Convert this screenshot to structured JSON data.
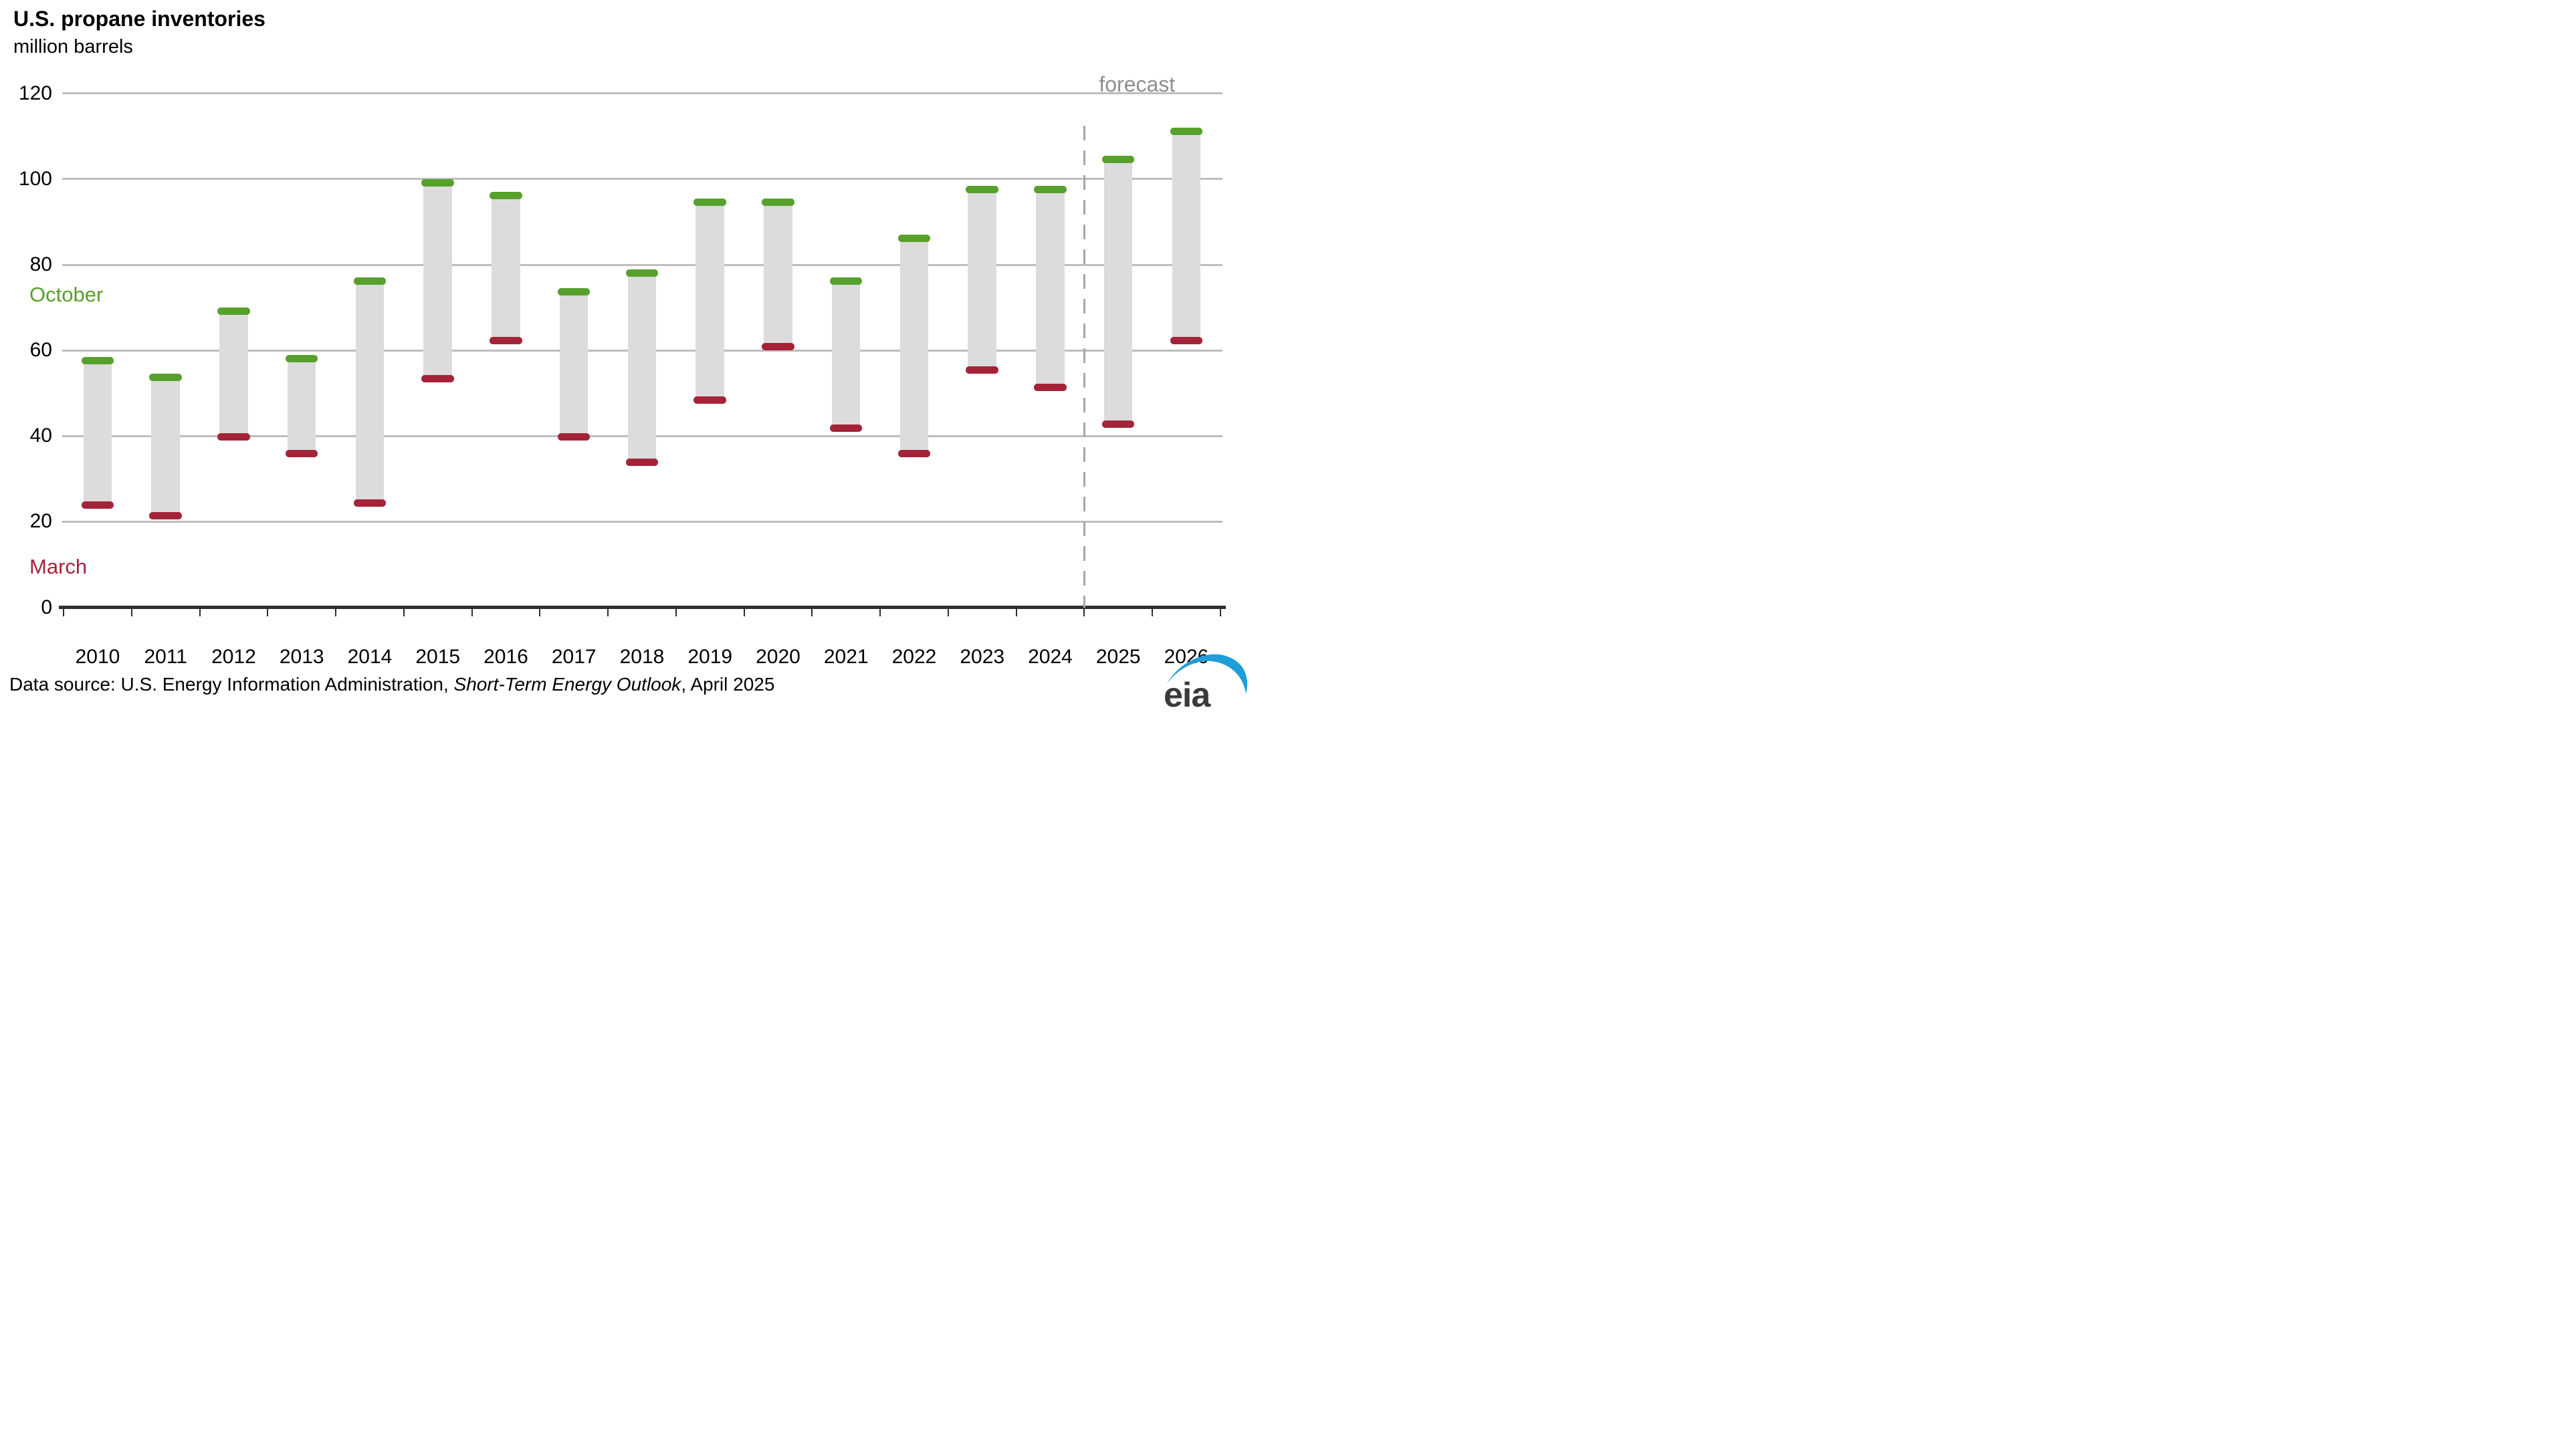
{
  "title": "U.S. propane inventories",
  "subtitle": "million barrels",
  "forecast_label": "forecast",
  "series_labels": {
    "october": "October",
    "march": "March"
  },
  "source": {
    "prefix": "Data source: U.S. Energy Information Administration, ",
    "italic": "Short-Term Energy Outlook",
    "suffix": ", April 2025"
  },
  "logo_text": "eia",
  "colors": {
    "october_green": "#57a02b",
    "march_crimson": "#a52338",
    "bar_gray": "#dcdcdc",
    "gridline": "#bdbdbd",
    "axis": "#2e2e2e",
    "forecast_gray": "#8f8f8f",
    "dashed_line": "#a6a6a6",
    "logo_blue": "#1e9dd8"
  },
  "chart_data": {
    "type": "bar",
    "variant": "floating-range-bars",
    "title": "U.S. propane inventories",
    "ylabel": "million barrels",
    "categories": [
      "2010",
      "2011",
      "2012",
      "2013",
      "2014",
      "2015",
      "2016",
      "2017",
      "2018",
      "2019",
      "2020",
      "2021",
      "2022",
      "2023",
      "2024",
      "2025",
      "2026"
    ],
    "series": [
      {
        "name": "March",
        "position": "bar-bottom",
        "color": "#a52338",
        "values": [
          23,
          20.5,
          39,
          35,
          23.5,
          52.5,
          61.5,
          39,
          33,
          47.5,
          60,
          41,
          35,
          54.5,
          50.5,
          42,
          61.5
        ]
      },
      {
        "name": "October",
        "position": "bar-top",
        "color": "#57a02b",
        "values": [
          58.5,
          54.5,
          70,
          59,
          77,
          100,
          97,
          74.5,
          79,
          95.5,
          95.5,
          77,
          87,
          98.5,
          98.5,
          105.5,
          112
        ]
      }
    ],
    "forecast_years": [
      "2025",
      "2026"
    ],
    "forecast_divider_after": "2024",
    "ylim": [
      0,
      120
    ],
    "yticks": [
      0,
      20,
      40,
      60,
      80,
      100,
      120
    ],
    "grid": "horizontal",
    "legend_position": "in-plot-left-annotations"
  }
}
